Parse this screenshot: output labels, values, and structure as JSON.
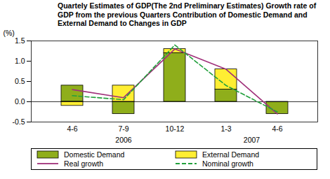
{
  "chart_data": {
    "type": "bar",
    "title": "Quartely Estimates of GDP(The 2nd Preliminary Estimates) Growth rate of GDP from the previous Quarters Contribution of Domestic Demand and External Demand to Changes in GDP",
    "y_label": "(%)",
    "categories": [
      "4-6",
      "7-9",
      "10-12",
      "1-3",
      "4-6"
    ],
    "years": [
      "2006",
      "2006",
      "2006",
      "2007",
      "2007"
    ],
    "ylim": [
      -0.5,
      1.5
    ],
    "yticks": [
      -0.5,
      {
        "value": 0,
        "label": "0.0"
      },
      0.5,
      {
        "value": 1,
        "label": "1.0"
      },
      1.5
    ],
    "stacked": true,
    "legend": "bottom",
    "series": [
      {
        "name": "Domestic Demand",
        "type": "bar",
        "color": "#8fae1b",
        "values": [
          0.4,
          -0.3,
          1.2,
          0.3,
          -0.3
        ]
      },
      {
        "name": "External Demand",
        "type": "bar",
        "color": "#ffee33",
        "values": [
          -0.1,
          0.4,
          0.1,
          0.5,
          0.0
        ]
      },
      {
        "name": "Real growth",
        "type": "line",
        "color": "#a0307a",
        "line_style": "solid",
        "values": [
          0.3,
          0.1,
          1.3,
          0.8,
          -0.3
        ]
      },
      {
        "name": "Nominal growth",
        "type": "line",
        "color": "#22a03c",
        "line_style": "dashed",
        "values": [
          0.15,
          0.05,
          1.4,
          0.4,
          -0.25
        ]
      }
    ]
  }
}
